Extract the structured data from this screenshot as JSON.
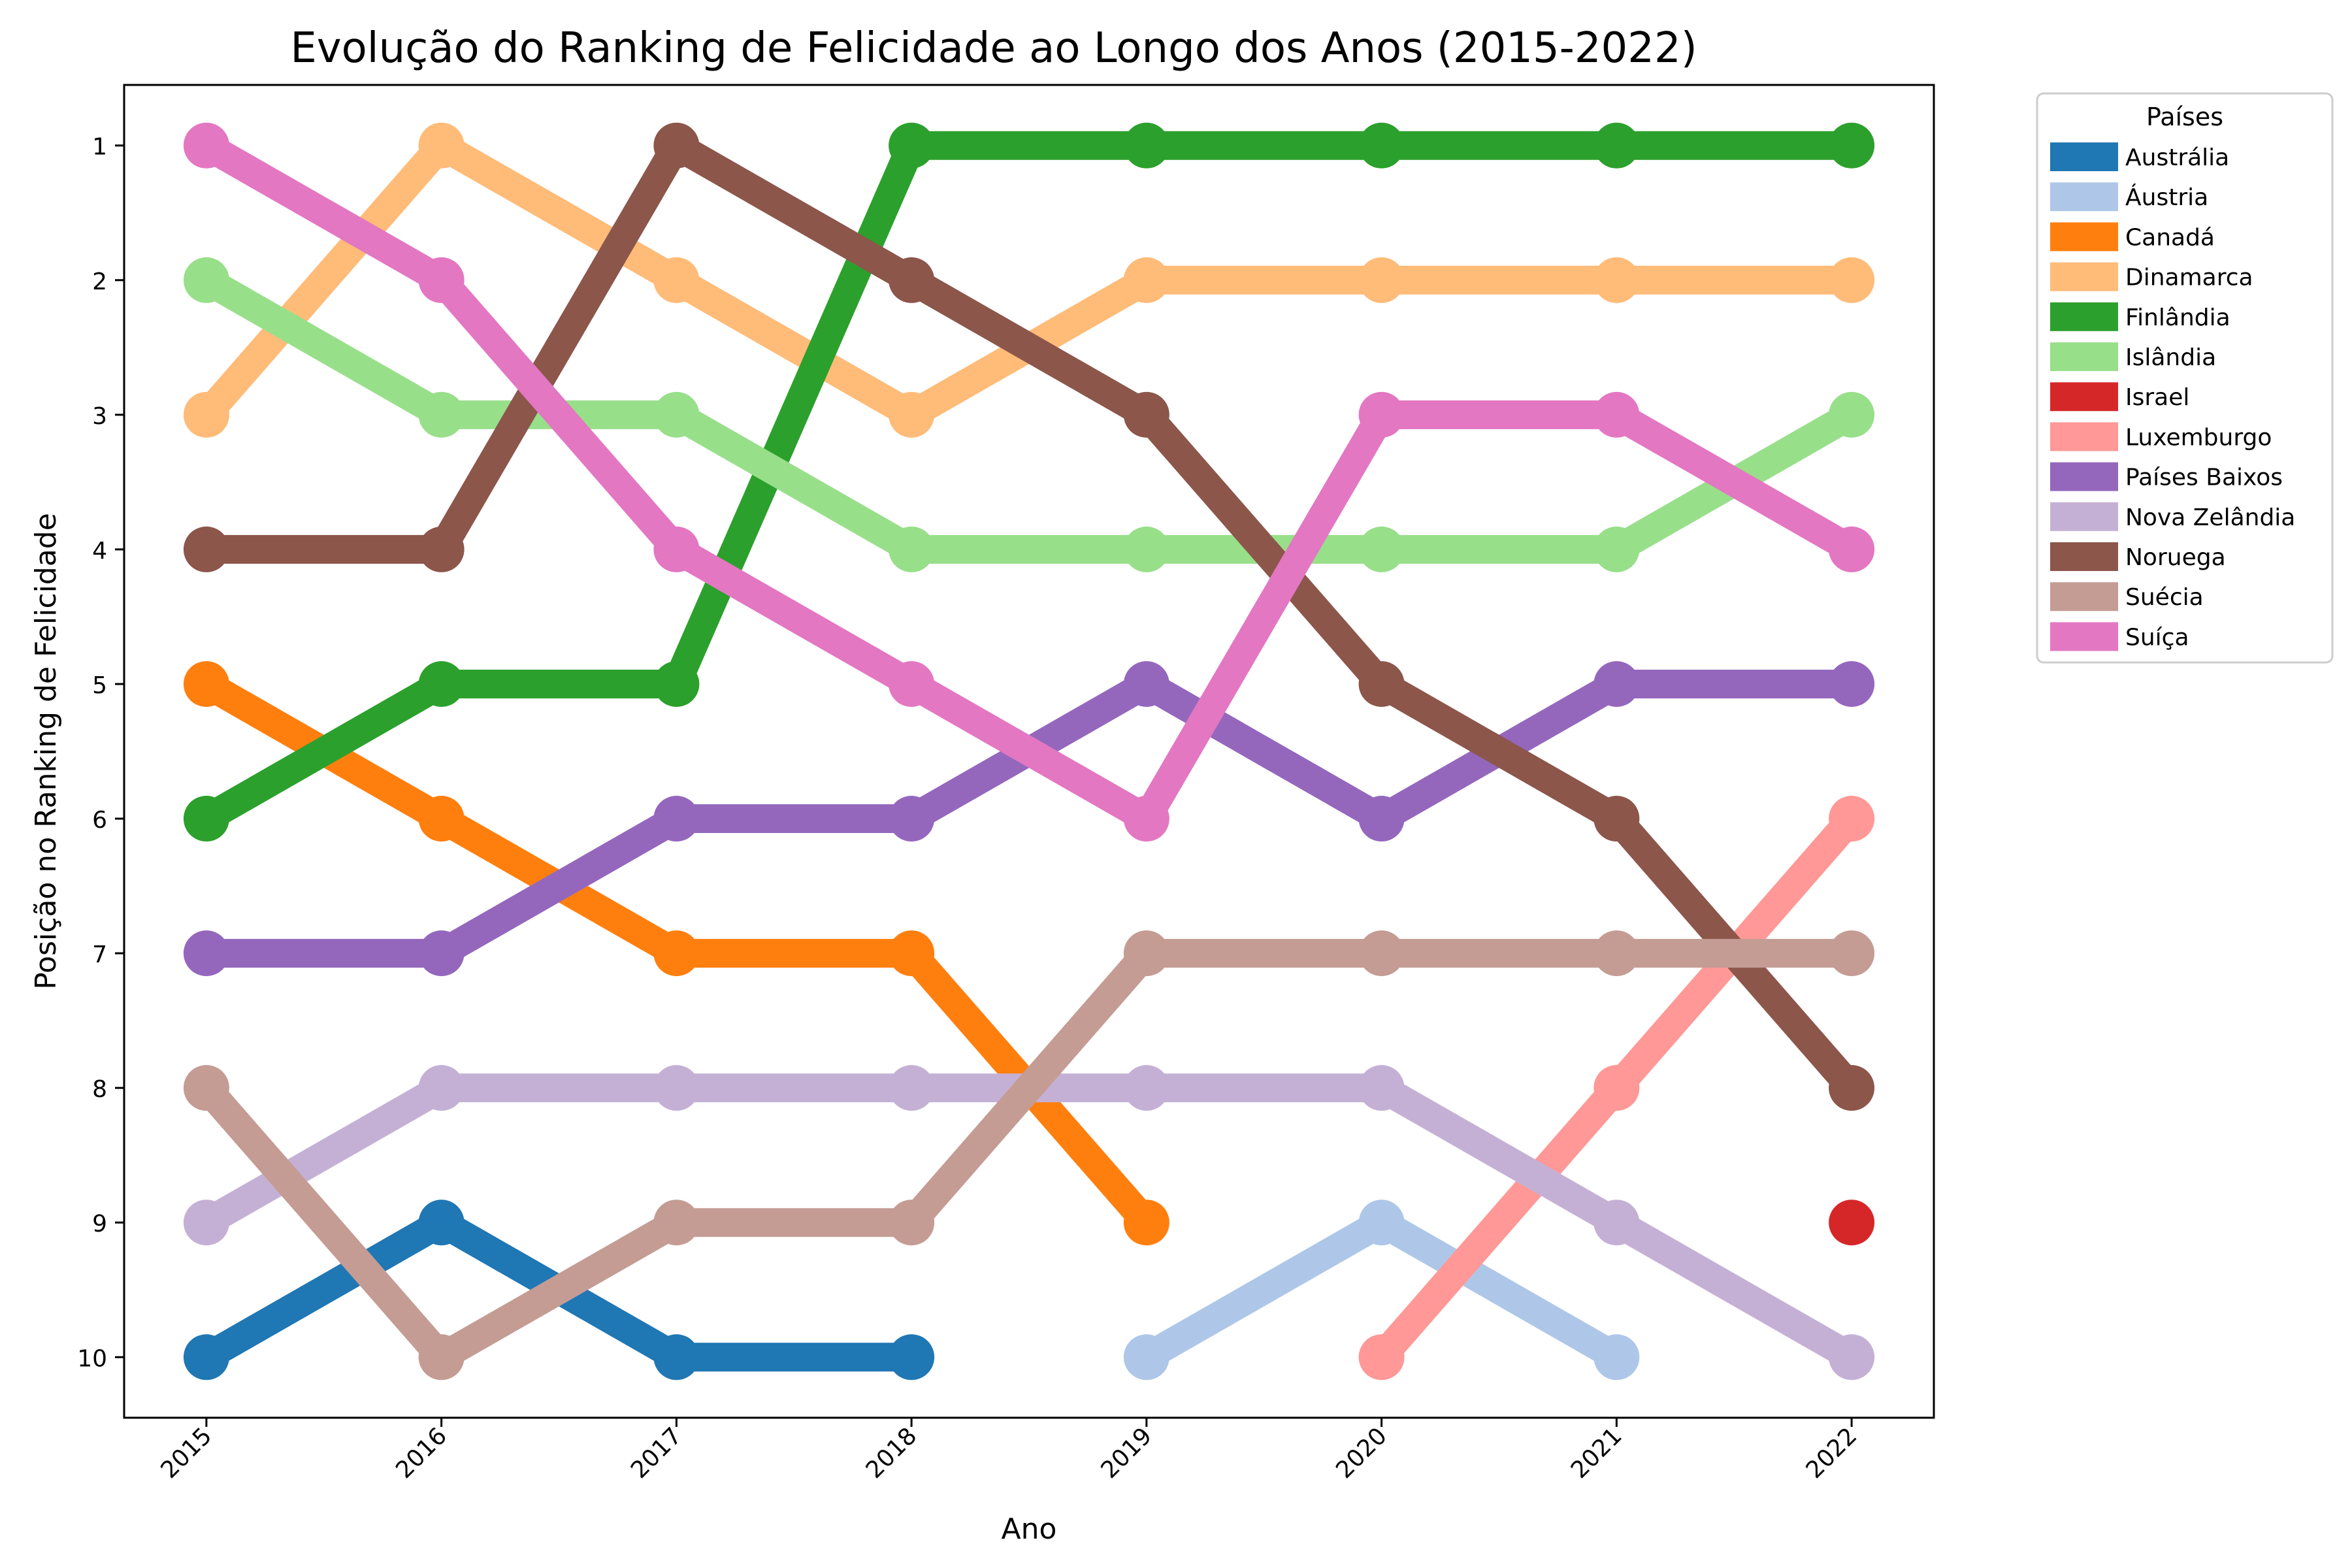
{
  "chart_data": {
    "type": "line",
    "title": "Evolução do Ranking de Felicidade ao Longo dos Anos (2015-2022)",
    "xlabel": "Ano",
    "ylabel": "Posição no Ranking de Felicidade",
    "x": [
      2015,
      2016,
      2017,
      2018,
      2019,
      2020,
      2021,
      2022
    ],
    "y_ticks": [
      1,
      2,
      3,
      4,
      5,
      6,
      7,
      8,
      9,
      10
    ],
    "ylim": [
      10.45,
      0.55
    ],
    "y_inverted": true,
    "x_tick_rotation": 45,
    "grid": false,
    "legend": {
      "title": "Países",
      "placement": "outside-top-right"
    },
    "series": [
      {
        "name": "Austrália",
        "color": "#1f77b4",
        "values": [
          10,
          9,
          10,
          10,
          null,
          null,
          null,
          null
        ]
      },
      {
        "name": "Áustria",
        "color": "#aec7e8",
        "values": [
          null,
          null,
          null,
          null,
          10,
          9,
          10,
          null
        ]
      },
      {
        "name": "Canadá",
        "color": "#ff7f0e",
        "values": [
          5,
          6,
          7,
          7,
          9,
          null,
          null,
          null
        ]
      },
      {
        "name": "Dinamarca",
        "color": "#ffbb78",
        "values": [
          3,
          1,
          2,
          3,
          2,
          2,
          2,
          2
        ]
      },
      {
        "name": "Finlândia",
        "color": "#2ca02c",
        "values": [
          6,
          5,
          5,
          1,
          1,
          1,
          1,
          1
        ]
      },
      {
        "name": "Islândia",
        "color": "#98df8a",
        "values": [
          2,
          3,
          3,
          4,
          4,
          4,
          4,
          3
        ]
      },
      {
        "name": "Israel",
        "color": "#d62728",
        "values": [
          null,
          null,
          null,
          null,
          null,
          null,
          null,
          9
        ]
      },
      {
        "name": "Luxemburgo",
        "color": "#ff9896",
        "values": [
          null,
          null,
          null,
          null,
          null,
          10,
          8,
          6
        ]
      },
      {
        "name": "Países Baixos",
        "color": "#9467bd",
        "values": [
          7,
          7,
          6,
          6,
          5,
          6,
          5,
          5
        ]
      },
      {
        "name": "Nova Zelândia",
        "color": "#c5b0d5",
        "values": [
          9,
          8,
          8,
          8,
          8,
          8,
          9,
          10
        ]
      },
      {
        "name": "Noruega",
        "color": "#8c564b",
        "values": [
          4,
          4,
          1,
          2,
          3,
          5,
          6,
          8
        ]
      },
      {
        "name": "Suécia",
        "color": "#c49c94",
        "values": [
          8,
          10,
          9,
          9,
          7,
          7,
          7,
          7
        ]
      },
      {
        "name": "Suíça",
        "color": "#e377c2",
        "values": [
          1,
          2,
          4,
          5,
          6,
          3,
          3,
          4
        ]
      }
    ]
  }
}
